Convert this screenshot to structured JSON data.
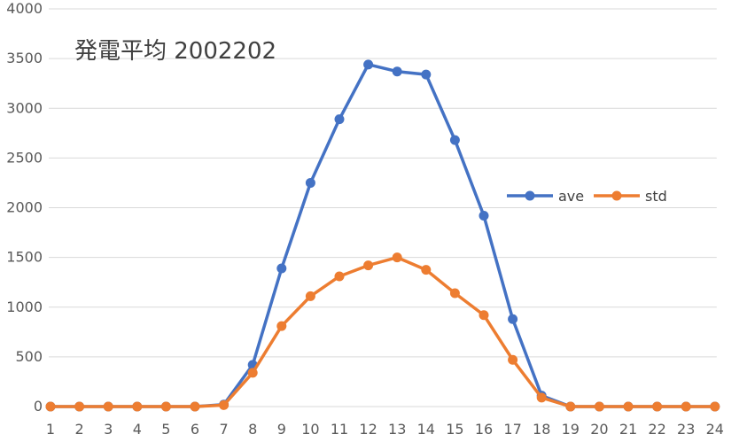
{
  "chart_data": {
    "type": "line",
    "title": "発電平均 2002202",
    "xlabel": "",
    "ylabel": "",
    "categories": [
      "1",
      "2",
      "3",
      "4",
      "5",
      "6",
      "7",
      "8",
      "9",
      "10",
      "11",
      "12",
      "13",
      "14",
      "15",
      "16",
      "17",
      "18",
      "19",
      "20",
      "21",
      "22",
      "23",
      "24"
    ],
    "ylim": [
      0,
      4000
    ],
    "yticks": [
      0,
      500,
      1000,
      1500,
      2000,
      2500,
      3000,
      3500,
      4000
    ],
    "grid": true,
    "legend_position": "right",
    "series": [
      {
        "name": "ave",
        "color": "#4472C4",
        "values": [
          0,
          0,
          0,
          0,
          0,
          0,
          20,
          420,
          1390,
          2250,
          2890,
          3440,
          3370,
          3340,
          2680,
          1920,
          880,
          110,
          0,
          0,
          0,
          0,
          0,
          0
        ]
      },
      {
        "name": "std",
        "color": "#ED7D31",
        "values": [
          0,
          0,
          0,
          0,
          0,
          0,
          15,
          340,
          810,
          1110,
          1310,
          1420,
          1500,
          1375,
          1140,
          920,
          470,
          90,
          0,
          0,
          0,
          0,
          0,
          0
        ]
      }
    ]
  }
}
